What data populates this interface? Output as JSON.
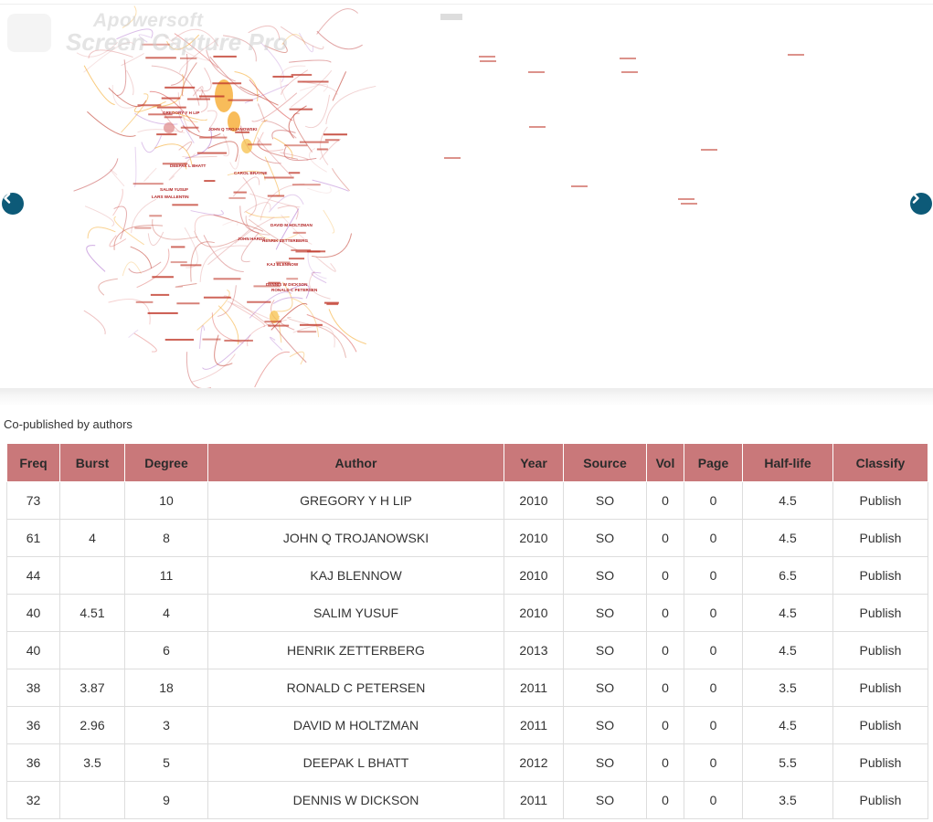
{
  "visualization": {
    "watermark": {
      "line1": "Apowersoft",
      "line2": "Screen Capture Pro"
    },
    "nav": {
      "prev_icon": "chevron-left-icon",
      "next_icon": "chevron-right-icon"
    },
    "labels": [
      "GREGORY Y H LIP",
      "JOHN Q TROJANOWSKI",
      "KAJ BLENNOW",
      "SALIM YUSUF",
      "HENRIK ZETTERBERG",
      "RONALD C PETERSEN",
      "DAVID M HOLTZMAN",
      "DEEPAK L BHATT",
      "DENNIS W DICKSON",
      "CAROL BRAYNE",
      "LARS WALLENTIN",
      "JOHN HARDY"
    ]
  },
  "section": {
    "title": "Co-published by authors"
  },
  "table": {
    "columns": [
      "Freq",
      "Burst",
      "Degree",
      "Author",
      "Year",
      "Source",
      "Vol",
      "Page",
      "Half-life",
      "Classify"
    ],
    "rows": [
      [
        "73",
        "",
        "10",
        "GREGORY Y H LIP",
        "2010",
        "SO",
        "0",
        "0",
        "4.5",
        "Publish"
      ],
      [
        "61",
        "4",
        "8",
        "JOHN Q TROJANOWSKI",
        "2010",
        "SO",
        "0",
        "0",
        "4.5",
        "Publish"
      ],
      [
        "44",
        "",
        "11",
        "KAJ BLENNOW",
        "2010",
        "SO",
        "0",
        "0",
        "6.5",
        "Publish"
      ],
      [
        "40",
        "4.51",
        "4",
        "SALIM YUSUF",
        "2010",
        "SO",
        "0",
        "0",
        "4.5",
        "Publish"
      ],
      [
        "40",
        "",
        "6",
        "HENRIK ZETTERBERG",
        "2013",
        "SO",
        "0",
        "0",
        "4.5",
        "Publish"
      ],
      [
        "38",
        "3.87",
        "18",
        "RONALD C PETERSEN",
        "2011",
        "SO",
        "0",
        "0",
        "3.5",
        "Publish"
      ],
      [
        "36",
        "2.96",
        "3",
        "DAVID M HOLTZMAN",
        "2011",
        "SO",
        "0",
        "0",
        "4.5",
        "Publish"
      ],
      [
        "36",
        "3.5",
        "5",
        "DEEPAK L BHATT",
        "2012",
        "SO",
        "0",
        "0",
        "5.5",
        "Publish"
      ],
      [
        "32",
        "",
        "9",
        "DENNIS W DICKSON",
        "2011",
        "SO",
        "0",
        "0",
        "3.5",
        "Publish"
      ]
    ]
  },
  "colors": {
    "header_bg": "#c9787a",
    "nav_button": "#0d5a78",
    "network_red": "#c0392b",
    "network_orange": "#f5a623",
    "network_purple": "#b57bd1"
  }
}
